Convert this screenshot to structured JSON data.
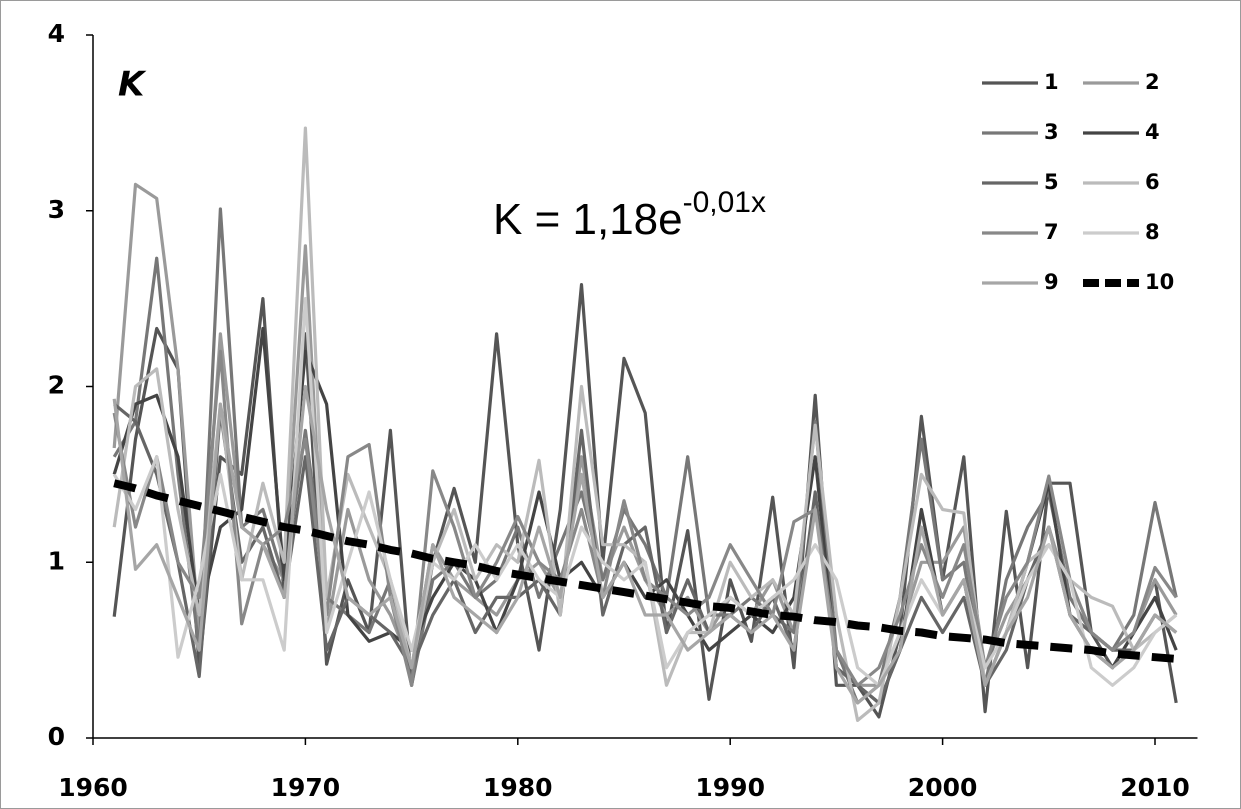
{
  "chart_data": {
    "type": "line",
    "annotation": "K",
    "equation": {
      "base": "K = 1,18e",
      "exponent": "-0,01x"
    },
    "x": [
      1961,
      1962,
      1963,
      1964,
      1965,
      1966,
      1967,
      1968,
      1969,
      1970,
      1971,
      1972,
      1973,
      1974,
      1975,
      1976,
      1977,
      1978,
      1979,
      1980,
      1981,
      1982,
      1983,
      1984,
      1985,
      1986,
      1987,
      1988,
      1989,
      1990,
      1991,
      1992,
      1993,
      1994,
      1995,
      1996,
      1997,
      1998,
      1999,
      2000,
      2001,
      2002,
      2003,
      2004,
      2005,
      2006,
      2007,
      2008,
      2009,
      2010,
      2011
    ],
    "xlim": [
      1960,
      2012
    ],
    "xticks": [
      1960,
      1970,
      1980,
      1990,
      2000,
      2010
    ],
    "ylim": [
      0,
      4
    ],
    "yticks": [
      0,
      1,
      2,
      3,
      4
    ],
    "legend_position": "upper right",
    "series": [
      {
        "name": "1",
        "color": "#555555",
        "values": [
          0.69,
          1.7,
          2.33,
          2.1,
          0.4,
          1.6,
          1.5,
          2.5,
          0.8,
          2.3,
          0.42,
          0.9,
          0.6,
          1.75,
          0.3,
          1.0,
          1.42,
          1.0,
          2.3,
          1.1,
          0.5,
          1.3,
          2.58,
          1.0,
          2.16,
          1.85,
          0.6,
          1.18,
          0.22,
          0.9,
          0.55,
          1.37,
          0.4,
          1.95,
          0.3,
          0.3,
          0.12,
          0.6,
          1.83,
          0.9,
          1.6,
          0.15,
          1.29,
          0.4,
          1.45,
          1.45,
          0.6,
          0.4,
          0.6,
          0.9,
          0.2
        ]
      },
      {
        "name": "2",
        "color": "#9a9a9a",
        "values": [
          1.65,
          3.15,
          3.07,
          2.1,
          0.6,
          2.3,
          1.2,
          1.1,
          0.9,
          2.8,
          0.6,
          1.3,
          0.9,
          0.7,
          0.4,
          1.1,
          0.9,
          0.8,
          0.7,
          0.9,
          1.0,
          0.8,
          1.6,
          0.9,
          1.2,
          0.9,
          0.7,
          0.8,
          0.6,
          0.8,
          0.7,
          0.9,
          0.6,
          1.3,
          0.5,
          0.3,
          0.3,
          0.6,
          1.0,
          1.0,
          1.2,
          0.4,
          0.7,
          0.9,
          1.2,
          0.8,
          0.6,
          0.5,
          0.6,
          0.9,
          0.7
        ]
      },
      {
        "name": "3",
        "color": "#777777",
        "values": [
          1.6,
          1.8,
          2.73,
          1.5,
          0.5,
          3.01,
          1.2,
          1.3,
          0.9,
          1.75,
          0.8,
          0.7,
          0.6,
          0.9,
          0.3,
          0.9,
          1.0,
          0.8,
          0.9,
          1.2,
          0.8,
          1.1,
          1.4,
          0.9,
          1.3,
          1.1,
          0.8,
          1.6,
          0.7,
          0.7,
          0.8,
          0.7,
          0.6,
          1.8,
          0.5,
          0.2,
          0.3,
          0.8,
          1.7,
          0.9,
          1.0,
          0.3,
          0.9,
          1.2,
          1.4,
          0.8,
          0.6,
          0.5,
          0.7,
          1.34,
          0.8
        ]
      },
      {
        "name": "4",
        "color": "#444444",
        "values": [
          1.5,
          1.9,
          1.95,
          1.6,
          0.7,
          1.2,
          1.3,
          2.33,
          0.9,
          2.2,
          1.9,
          0.7,
          0.55,
          0.6,
          0.5,
          0.8,
          1.0,
          0.9,
          0.6,
          0.9,
          1.4,
          0.9,
          1.0,
          0.8,
          1.0,
          0.8,
          0.9,
          0.7,
          0.5,
          0.6,
          0.7,
          0.6,
          0.8,
          1.6,
          0.4,
          0.3,
          0.2,
          0.5,
          1.3,
          0.7,
          0.9,
          0.3,
          0.6,
          1.0,
          1.45,
          0.7,
          0.5,
          0.4,
          0.6,
          0.8,
          0.5
        ]
      },
      {
        "name": "5",
        "color": "#666666",
        "values": [
          1.9,
          1.8,
          1.5,
          1.0,
          0.35,
          1.86,
          1.0,
          1.2,
          0.8,
          1.6,
          0.5,
          0.8,
          0.7,
          0.6,
          0.4,
          0.7,
          0.9,
          0.6,
          0.8,
          0.8,
          0.9,
          0.7,
          1.75,
          0.7,
          1.1,
          1.2,
          0.6,
          0.9,
          0.6,
          0.7,
          0.6,
          0.8,
          0.5,
          1.4,
          0.4,
          0.3,
          0.2,
          0.5,
          0.8,
          0.6,
          0.8,
          0.3,
          0.5,
          0.9,
          1.2,
          0.7,
          0.6,
          0.5,
          0.5,
          0.7,
          0.6
        ]
      },
      {
        "name": "6",
        "color": "#bbbbbb",
        "values": [
          1.2,
          2.0,
          2.1,
          1.3,
          0.7,
          1.9,
          0.9,
          1.45,
          1.0,
          3.47,
          0.8,
          1.5,
          1.2,
          0.9,
          0.4,
          1.0,
          1.3,
          0.9,
          1.1,
          1.0,
          1.58,
          0.7,
          2.0,
          1.1,
          1.1,
          1.0,
          0.3,
          0.6,
          0.6,
          1.0,
          0.8,
          0.9,
          0.7,
          1.78,
          0.7,
          0.1,
          0.2,
          0.8,
          1.5,
          1.3,
          1.28,
          0.3,
          0.6,
          1.0,
          1.1,
          0.9,
          0.8,
          0.75,
          0.5,
          0.6,
          0.7
        ]
      },
      {
        "name": "7",
        "color": "#888888",
        "values": [
          1.85,
          1.2,
          1.6,
          1.0,
          0.8,
          2.2,
          0.65,
          1.1,
          1.2,
          1.7,
          0.7,
          1.6,
          1.67,
          0.8,
          0.3,
          1.52,
          1.2,
          0.8,
          1.0,
          1.26,
          1.0,
          0.9,
          1.3,
          0.8,
          1.35,
          0.9,
          0.8,
          0.7,
          0.8,
          1.1,
          0.9,
          0.7,
          1.23,
          1.3,
          0.5,
          0.3,
          0.4,
          0.7,
          1.1,
          0.8,
          1.1,
          0.4,
          0.8,
          1.0,
          1.49,
          0.9,
          0.6,
          0.5,
          0.6,
          0.97,
          0.8
        ]
      },
      {
        "name": "8",
        "color": "#cccccc",
        "values": [
          1.5,
          1.3,
          1.6,
          0.46,
          0.9,
          1.5,
          0.9,
          0.9,
          0.5,
          2.5,
          0.6,
          1.0,
          1.4,
          0.9,
          0.5,
          1.0,
          0.9,
          1.1,
          0.9,
          1.1,
          0.9,
          0.8,
          1.2,
          1.0,
          0.9,
          1.0,
          0.4,
          0.6,
          0.7,
          0.8,
          0.7,
          0.8,
          0.9,
          1.1,
          0.9,
          0.4,
          0.3,
          0.6,
          0.9,
          0.7,
          0.9,
          0.4,
          0.6,
          0.9,
          1.1,
          0.9,
          0.4,
          0.3,
          0.4,
          0.6,
          0.7
        ]
      },
      {
        "name": "9",
        "color": "#a6a6a6",
        "values": [
          1.93,
          0.96,
          1.1,
          0.8,
          0.5,
          1.9,
          1.2,
          1.1,
          0.8,
          2.0,
          1.3,
          0.8,
          0.7,
          0.8,
          0.4,
          1.1,
          0.8,
          0.7,
          0.6,
          0.8,
          1.2,
          0.8,
          1.5,
          0.8,
          1.0,
          0.7,
          0.7,
          0.5,
          0.6,
          0.7,
          0.6,
          0.7,
          0.5,
          1.3,
          0.4,
          0.2,
          0.3,
          0.5,
          1.2,
          0.7,
          0.9,
          0.3,
          0.6,
          0.8,
          1.2,
          0.7,
          0.5,
          0.4,
          0.5,
          0.7,
          0.6
        ]
      },
      {
        "name": "10",
        "color": "#000000",
        "dashed": true,
        "values": [
          1.45,
          1.42,
          1.38,
          1.35,
          1.32,
          1.29,
          1.26,
          1.23,
          1.2,
          1.18,
          1.15,
          1.12,
          1.1,
          1.07,
          1.05,
          1.02,
          1.0,
          0.98,
          0.95,
          0.93,
          0.91,
          0.89,
          0.87,
          0.85,
          0.83,
          0.81,
          0.79,
          0.77,
          0.75,
          0.74,
          0.72,
          0.7,
          0.69,
          0.67,
          0.66,
          0.64,
          0.63,
          0.61,
          0.6,
          0.58,
          0.57,
          0.56,
          0.54,
          0.53,
          0.52,
          0.51,
          0.5,
          0.48,
          0.47,
          0.46,
          0.45
        ]
      }
    ]
  }
}
